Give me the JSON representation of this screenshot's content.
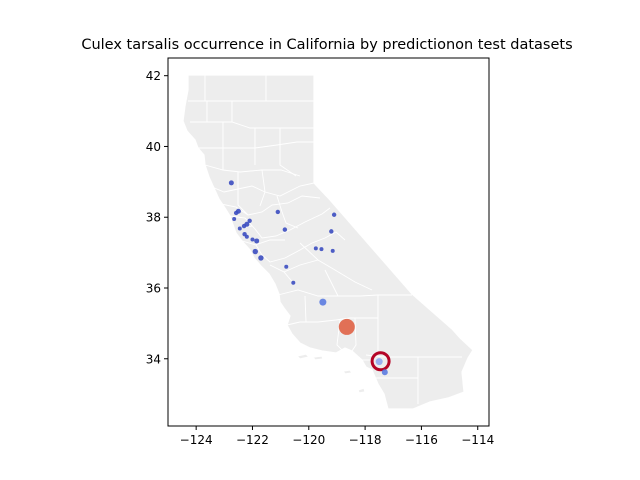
{
  "chart_data": {
    "type": "scatter",
    "title": "Culex tarsalis occurrence in California by predictionon test datasets",
    "xlabel": "",
    "ylabel": "",
    "xlim": [
      -125.0,
      -113.6
    ],
    "ylim": [
      32.1,
      42.5
    ],
    "xticks": [
      -124,
      -122,
      -120,
      -118,
      -116,
      -114
    ],
    "yticks": [
      34,
      36,
      38,
      40,
      42
    ],
    "xtick_labels": [
      "−124",
      "−122",
      "−120",
      "−118",
      "−116",
      "−114"
    ],
    "ytick_labels": [
      "34",
      "36",
      "38",
      "40",
      "42"
    ],
    "colors": {
      "state_fill": "#ededed",
      "border": "#ffffff",
      "low": "#3b4cc0",
      "mid": "#6f8fe6",
      "high": "#e0694e",
      "ring": "#b40426"
    },
    "points": [
      {
        "x": -122.75,
        "y": 38.97,
        "size": 2.5,
        "color": "#3b4cc0"
      },
      {
        "x": -122.5,
        "y": 38.17,
        "size": 2.5,
        "color": "#3b4cc0"
      },
      {
        "x": -122.58,
        "y": 38.12,
        "size": 2.2,
        "color": "#3b4cc0"
      },
      {
        "x": -122.65,
        "y": 37.95,
        "size": 2.0,
        "color": "#3b4cc0"
      },
      {
        "x": -122.1,
        "y": 37.9,
        "size": 2.2,
        "color": "#3b4cc0"
      },
      {
        "x": -122.2,
        "y": 37.8,
        "size": 2.5,
        "color": "#3b4cc0"
      },
      {
        "x": -122.3,
        "y": 37.75,
        "size": 2.2,
        "color": "#3b4cc0"
      },
      {
        "x": -122.45,
        "y": 37.68,
        "size": 2.0,
        "color": "#3b4cc0"
      },
      {
        "x": -122.28,
        "y": 37.52,
        "size": 2.2,
        "color": "#3b4cc0"
      },
      {
        "x": -122.2,
        "y": 37.45,
        "size": 2.0,
        "color": "#3b4cc0"
      },
      {
        "x": -122.0,
        "y": 37.37,
        "size": 2.0,
        "color": "#3b4cc0"
      },
      {
        "x": -121.85,
        "y": 37.33,
        "size": 2.5,
        "color": "#3b4cc0"
      },
      {
        "x": -121.9,
        "y": 37.03,
        "size": 2.7,
        "color": "#3b4cc0"
      },
      {
        "x": -121.7,
        "y": 36.85,
        "size": 2.7,
        "color": "#3b4cc0"
      },
      {
        "x": -121.1,
        "y": 38.15,
        "size": 2.2,
        "color": "#3b4cc0"
      },
      {
        "x": -120.85,
        "y": 37.65,
        "size": 2.2,
        "color": "#3b4cc0"
      },
      {
        "x": -119.75,
        "y": 37.12,
        "size": 2.0,
        "color": "#3b4cc0"
      },
      {
        "x": -119.55,
        "y": 37.1,
        "size": 2.0,
        "color": "#3b4cc0"
      },
      {
        "x": -119.1,
        "y": 38.07,
        "size": 2.2,
        "color": "#3b4cc0"
      },
      {
        "x": -119.2,
        "y": 37.6,
        "size": 2.2,
        "color": "#3b4cc0"
      },
      {
        "x": -119.15,
        "y": 37.05,
        "size": 2.0,
        "color": "#3b4cc0"
      },
      {
        "x": -120.8,
        "y": 36.6,
        "size": 2.0,
        "color": "#3b4cc0"
      },
      {
        "x": -120.55,
        "y": 36.15,
        "size": 2.0,
        "color": "#3b4cc0"
      },
      {
        "x": -119.5,
        "y": 35.6,
        "size": 3.5,
        "color": "#5b7be0"
      },
      {
        "x": -118.65,
        "y": 34.9,
        "size": 8.0,
        "color": "#e0694e"
      },
      {
        "x": -117.45,
        "y": 33.93,
        "size": 8.5,
        "color": "#b40426",
        "ring": true
      },
      {
        "x": -117.5,
        "y": 33.92,
        "size": 3.5,
        "color": "#8fa8f0"
      },
      {
        "x": -117.3,
        "y": 33.62,
        "size": 3.0,
        "color": "#5b7be0"
      }
    ]
  }
}
